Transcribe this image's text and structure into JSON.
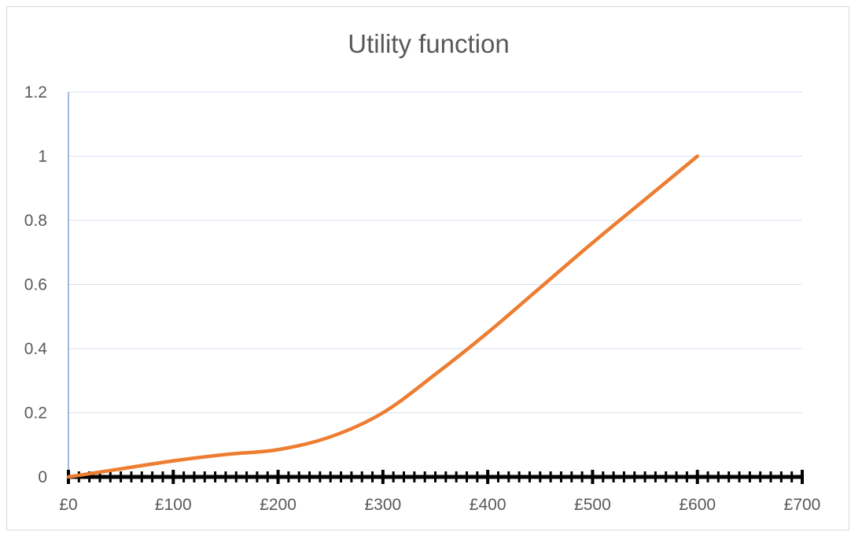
{
  "chart_data": {
    "type": "line",
    "title": "Utility function",
    "xlabel": "",
    "ylabel": "",
    "xlim": [
      0,
      700
    ],
    "ylim": [
      0,
      1.2
    ],
    "x_ticks": [
      0,
      100,
      200,
      300,
      400,
      500,
      600,
      700
    ],
    "x_tick_labels": [
      "£0",
      "£100",
      "£200",
      "£300",
      "£400",
      "£500",
      "£600",
      "£700"
    ],
    "y_ticks": [
      0,
      0.2,
      0.4,
      0.6,
      0.8,
      1.0,
      1.2
    ],
    "y_tick_labels": [
      "0",
      "0.2",
      "0.4",
      "0.6",
      "0.8",
      "1",
      "1.2"
    ],
    "grid": true,
    "legend": "none",
    "series": [
      {
        "color": "#ed7d31",
        "x": [
          0,
          20,
          50,
          100,
          150,
          200,
          250,
          300,
          350,
          400,
          450,
          500,
          550,
          600
        ],
        "y": [
          0,
          0.01,
          0.025,
          0.05,
          0.07,
          0.085,
          0.125,
          0.2,
          0.32,
          0.45,
          0.59,
          0.73,
          0.865,
          1.0
        ]
      }
    ],
    "colors": {
      "line": "#ed7d31",
      "gridline": "#d9e3f0",
      "y_axis": "#4472c4",
      "x_axis": "#000000",
      "text": "#595959"
    }
  }
}
